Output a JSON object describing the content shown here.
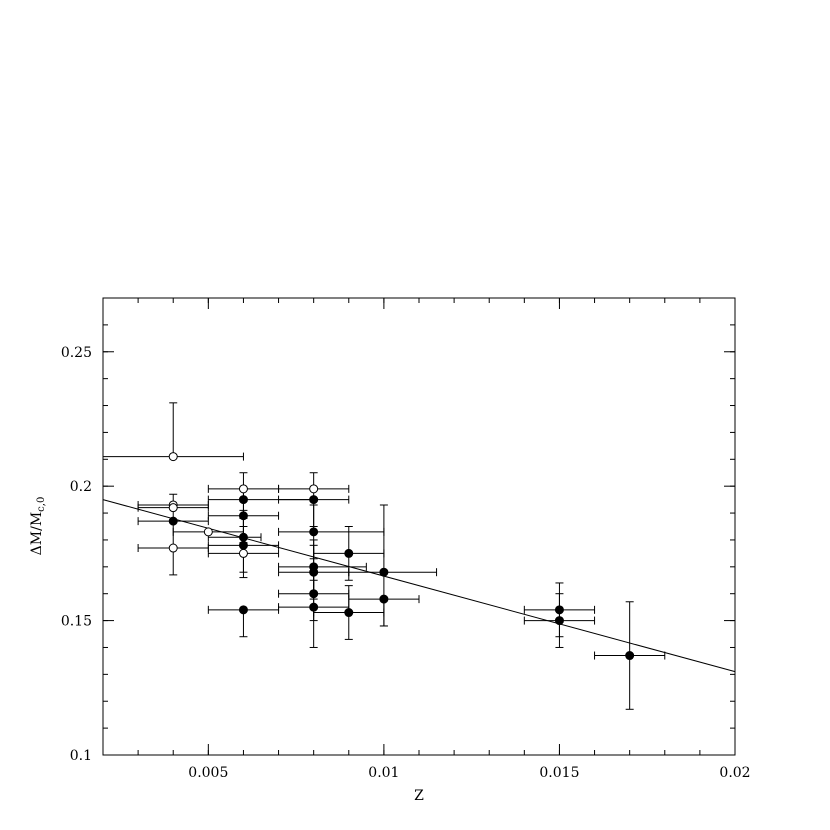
{
  "chart_data": {
    "type": "scatter",
    "xlabel": "Z",
    "ylabel_main": "ΔM/M",
    "ylabel_sub": "c,0",
    "xlim": [
      0.002,
      0.02
    ],
    "ylim": [
      0.1,
      0.27
    ],
    "x_ticks": [
      {
        "value": 0.005,
        "label": "0.005"
      },
      {
        "value": 0.01,
        "label": "0.01"
      },
      {
        "value": 0.015,
        "label": "0.015"
      },
      {
        "value": 0.02,
        "label": "0.02"
      }
    ],
    "y_ticks": [
      {
        "value": 0.1,
        "label": "0.1"
      },
      {
        "value": 0.15,
        "label": "0.15"
      },
      {
        "value": 0.2,
        "label": "0.2"
      },
      {
        "value": 0.25,
        "label": "0.25"
      }
    ],
    "grid": false,
    "fit_line": {
      "x": [
        0.002,
        0.02
      ],
      "y": [
        0.195,
        0.131
      ]
    },
    "series": [
      {
        "marker": "open-circle",
        "points": [
          {
            "x": 0.004,
            "y": 0.211,
            "xerr": [
              0.002,
              0.002
            ],
            "yerr": [
              0.0,
              0.02
            ]
          },
          {
            "x": 0.004,
            "y": 0.193,
            "xerr": [
              0.001,
              0.001
            ],
            "yerr": [
              0.0,
              0.0
            ]
          },
          {
            "x": 0.004,
            "y": 0.192,
            "xerr": [
              0.001,
              0.001
            ],
            "yerr": [
              0.0,
              0.0
            ]
          },
          {
            "x": 0.004,
            "y": 0.177,
            "xerr": [
              0.001,
              0.001
            ],
            "yerr": [
              0.0,
              0.0
            ]
          },
          {
            "x": 0.005,
            "y": 0.183,
            "xerr": [
              0.001,
              0.001
            ],
            "yerr": [
              0.0,
              0.0
            ]
          },
          {
            "x": 0.006,
            "y": 0.199,
            "xerr": [
              0.001,
              0.001
            ],
            "yerr": [
              0.0,
              0.0
            ]
          },
          {
            "x": 0.006,
            "y": 0.175,
            "xerr": [
              0.001,
              0.001
            ],
            "yerr": [
              0.0,
              0.0
            ]
          },
          {
            "x": 0.008,
            "y": 0.199,
            "xerr": [
              0.001,
              0.001
            ],
            "yerr": [
              0.0,
              0.0
            ]
          }
        ]
      },
      {
        "marker": "filled-circle",
        "points": [
          {
            "x": 0.004,
            "y": 0.187,
            "xerr": [
              0.001,
              0.001
            ],
            "yerr": [
              0.02,
              0.01
            ]
          },
          {
            "x": 0.006,
            "y": 0.195,
            "xerr": [
              0.001,
              0.002
            ],
            "yerr": [
              0.01,
              0.01
            ]
          },
          {
            "x": 0.006,
            "y": 0.189,
            "xerr": [
              0.001,
              0.001
            ],
            "yerr": [
              0.01,
              0.01
            ]
          },
          {
            "x": 0.006,
            "y": 0.181,
            "xerr": [
              0.001,
              0.0005
            ],
            "yerr": [
              0.015,
              0.01
            ]
          },
          {
            "x": 0.006,
            "y": 0.178,
            "xerr": [
              0.001,
              0.001
            ],
            "yerr": [
              0.01,
              0.01
            ]
          },
          {
            "x": 0.006,
            "y": 0.154,
            "xerr": [
              0.001,
              0.001
            ],
            "yerr": [
              0.01,
              0.0
            ]
          },
          {
            "x": 0.008,
            "y": 0.195,
            "xerr": [
              0.001,
              0.001
            ],
            "yerr": [
              0.01,
              0.01
            ]
          },
          {
            "x": 0.008,
            "y": 0.183,
            "xerr": [
              0.001,
              0.002
            ],
            "yerr": [
              0.01,
              0.01
            ]
          },
          {
            "x": 0.008,
            "y": 0.17,
            "xerr": [
              0.001,
              0.0015
            ],
            "yerr": [
              0.01,
              0.01
            ]
          },
          {
            "x": 0.008,
            "y": 0.168,
            "xerr": [
              0.001,
              0.001
            ],
            "yerr": [
              0.01,
              0.01
            ]
          },
          {
            "x": 0.008,
            "y": 0.16,
            "xerr": [
              0.001,
              0.001
            ],
            "yerr": [
              0.01,
              0.01
            ]
          },
          {
            "x": 0.008,
            "y": 0.155,
            "xerr": [
              0.001,
              0.001
            ],
            "yerr": [
              0.015,
              0.01
            ]
          },
          {
            "x": 0.009,
            "y": 0.175,
            "xerr": [
              0.001,
              0.001
            ],
            "yerr": [
              0.01,
              0.01
            ]
          },
          {
            "x": 0.009,
            "y": 0.153,
            "xerr": [
              0.001,
              0.001
            ],
            "yerr": [
              0.01,
              0.01
            ]
          },
          {
            "x": 0.01,
            "y": 0.168,
            "xerr": [
              0.001,
              0.0015
            ],
            "yerr": [
              0.02,
              0.025
            ]
          },
          {
            "x": 0.01,
            "y": 0.158,
            "xerr": [
              0.001,
              0.001
            ],
            "yerr": [
              0.01,
              0.0
            ]
          },
          {
            "x": 0.015,
            "y": 0.154,
            "xerr": [
              0.001,
              0.001
            ],
            "yerr": [
              0.01,
              0.01
            ]
          },
          {
            "x": 0.015,
            "y": 0.15,
            "xerr": [
              0.001,
              0.001
            ],
            "yerr": [
              0.01,
              0.01
            ]
          },
          {
            "x": 0.017,
            "y": 0.137,
            "xerr": [
              0.001,
              0.001
            ],
            "yerr": [
              0.02,
              0.02
            ]
          }
        ]
      }
    ]
  }
}
